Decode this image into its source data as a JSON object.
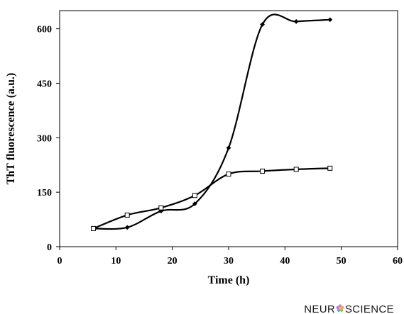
{
  "chart_data": {
    "type": "line",
    "title": "",
    "xlabel": "Time (h)",
    "ylabel": "ThT fluorescence  (a.u.)",
    "xlim": [
      0,
      60
    ],
    "ylim": [
      0,
      650
    ],
    "xticks": [
      0,
      10,
      20,
      30,
      40,
      50,
      60
    ],
    "yticks": [
      0,
      150,
      300,
      450,
      600
    ],
    "xtick_labels": [
      "0",
      "10",
      "20",
      "30",
      "40",
      "50",
      "60"
    ],
    "ytick_labels": [
      "0",
      "150",
      "300",
      "450",
      "600"
    ],
    "grid": false,
    "legend": "none",
    "series": [
      {
        "marker": "diamond",
        "color": "#000000",
        "x": [
          6,
          12,
          18,
          24,
          30,
          36,
          42,
          48
        ],
        "y": [
          50,
          53,
          98,
          118,
          272,
          612,
          620,
          625
        ]
      },
      {
        "marker": "square",
        "color": "#000000",
        "x": [
          6,
          12,
          18,
          24,
          30,
          36,
          42,
          48
        ],
        "y": [
          50,
          87,
          107,
          141,
          200,
          208,
          213,
          216
        ]
      }
    ]
  },
  "watermark": {
    "text_left": "NEUR",
    "text_right": "SCIENCE"
  }
}
